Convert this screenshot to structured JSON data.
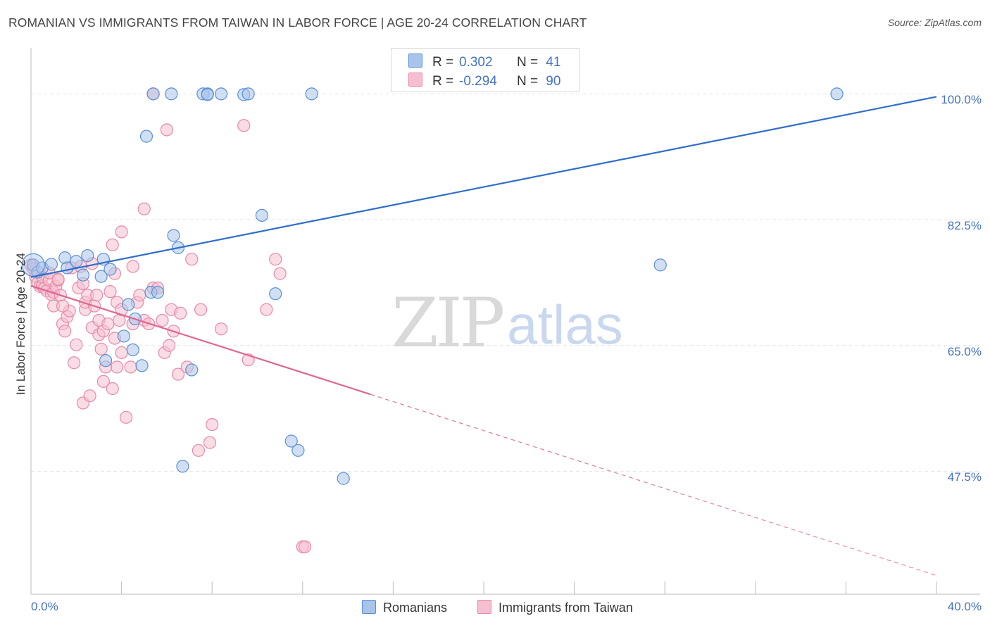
{
  "header": {
    "title": "ROMANIAN VS IMMIGRANTS FROM TAIWAN IN LABOR FORCE | AGE 20-24 CORRELATION CHART",
    "source": "Source: ZipAtlas.com"
  },
  "watermark": {
    "zip": "ZIP",
    "atlas": "atlas"
  },
  "legend": {
    "rows": [
      {
        "r_label": "R =",
        "r_value": "0.302",
        "n_label": "N =",
        "n_value": "41"
      },
      {
        "r_label": "R =",
        "r_value": "-0.294",
        "n_label": "N =",
        "n_value": "90"
      }
    ],
    "bottom": [
      "Romanians",
      "Immigrants from Taiwan"
    ]
  },
  "colors": {
    "romanians_fill": "#a9c4ea",
    "romanians_stroke": "#5b8fd6",
    "romanians_line": "#2f6ec9",
    "taiwan_fill": "#f6bfd0",
    "taiwan_stroke": "#e889a8",
    "taiwan_line": "#e0668f",
    "grid": "#e4e4e4",
    "axis_text": "#4472c4"
  },
  "chart_data": {
    "type": "scatter",
    "title": "ROMANIAN VS IMMIGRANTS FROM TAIWAN IN LABOR FORCE | AGE 20-24 CORRELATION CHART",
    "xlabel": "",
    "ylabel": "In Labor Force | Age 20-24",
    "xlim": [
      0,
      40
    ],
    "ylim": [
      30.4,
      106.4
    ],
    "x_tick_labels": [
      "0.0%",
      "40.0%"
    ],
    "y_ticks": [
      47.5,
      65.0,
      82.5,
      100.0
    ],
    "y_tick_labels": [
      "47.5%",
      "65.0%",
      "82.5%",
      "100.0%"
    ],
    "series": [
      {
        "name": "Romanians",
        "x": [
          0.1,
          0.3,
          0.5,
          0.9,
          1.5,
          1.6,
          2.0,
          2.3,
          2.5,
          3.1,
          3.2,
          3.3,
          3.5,
          4.1,
          4.3,
          4.5,
          4.6,
          4.9,
          5.1,
          5.3,
          5.4,
          5.6,
          6.2,
          6.3,
          6.5,
          6.7,
          7.1,
          7.6,
          7.8,
          7.8,
          8.4,
          9.4,
          9.6,
          10.2,
          10.8,
          11.5,
          11.8,
          12.4,
          13.8,
          27.8,
          35.6
        ],
        "y": [
          76.2,
          75.2,
          75.8,
          76.3,
          77.2,
          75.8,
          76.7,
          74.8,
          77.5,
          74.6,
          77.0,
          62.9,
          75.6,
          66.3,
          70.7,
          64.4,
          68.7,
          62.2,
          94.1,
          72.4,
          100.0,
          72.4,
          100.0,
          80.3,
          78.6,
          48.2,
          61.6,
          100.0,
          100.0,
          99.9,
          100.0,
          99.9,
          100.0,
          83.1,
          72.2,
          51.7,
          50.4,
          100.0,
          46.5,
          76.2,
          100.0
        ]
      },
      {
        "name": "Immigrants from Taiwan",
        "x": [
          0.0,
          0.1,
          0.2,
          0.3,
          0.4,
          0.5,
          0.5,
          0.6,
          0.7,
          0.8,
          0.8,
          0.9,
          1.0,
          1.0,
          1.1,
          1.2,
          1.3,
          1.4,
          1.5,
          1.6,
          1.7,
          1.8,
          1.9,
          2.0,
          2.1,
          2.2,
          2.3,
          2.4,
          2.4,
          2.5,
          2.6,
          2.7,
          2.8,
          2.9,
          3.0,
          3.0,
          3.1,
          3.2,
          3.2,
          3.3,
          3.4,
          3.5,
          3.6,
          3.6,
          3.7,
          3.7,
          3.8,
          3.8,
          3.9,
          4.0,
          4.0,
          4.2,
          4.4,
          4.5,
          4.5,
          4.7,
          4.8,
          5.0,
          5.0,
          5.2,
          5.4,
          5.6,
          5.8,
          5.9,
          6.0,
          6.1,
          6.2,
          6.3,
          6.5,
          6.6,
          6.9,
          7.1,
          7.4,
          7.5,
          7.9,
          8.0,
          8.4,
          9.4,
          9.6,
          10.4,
          10.8,
          11.0,
          12.0,
          12.1,
          1.2,
          1.4,
          2.3,
          2.7,
          4.0,
          5.4
        ],
        "y": [
          76.2,
          75.7,
          74.6,
          73.7,
          73.2,
          73.3,
          74.5,
          73.0,
          72.6,
          74.1,
          75.1,
          72.1,
          72.4,
          70.5,
          73.2,
          74.1,
          72.0,
          68.0,
          67.0,
          69.0,
          69.8,
          75.8,
          62.6,
          65.1,
          73.0,
          76.0,
          57.0,
          70.0,
          71.0,
          72.0,
          58.0,
          67.5,
          70.5,
          72.0,
          68.5,
          66.5,
          64.5,
          60.0,
          67.0,
          62.0,
          68.0,
          72.5,
          59.0,
          79.0,
          66.0,
          75.0,
          62.0,
          71.0,
          68.5,
          70.0,
          64.0,
          55.0,
          62.0,
          76.0,
          68.0,
          71.0,
          72.0,
          68.5,
          84.0,
          68.0,
          73.0,
          73.0,
          68.5,
          64.0,
          95.0,
          65.0,
          70.0,
          67.0,
          61.0,
          69.5,
          62.0,
          77.0,
          50.4,
          70.0,
          51.5,
          54.0,
          67.3,
          95.6,
          63.0,
          70.0,
          77.0,
          75.0,
          37.0,
          37.0,
          74.2,
          70.5,
          73.6,
          76.4,
          80.8,
          100.0
        ]
      }
    ],
    "trend_lines": [
      {
        "name": "Romanians",
        "x": [
          0.0,
          40.0
        ],
        "y": [
          74.5,
          99.6
        ]
      },
      {
        "name": "Immigrants from Taiwan",
        "solid_x": [
          0.0,
          15.0
        ],
        "solid_y": [
          73.3,
          58.2
        ],
        "dashed_x": [
          15.0,
          40.0
        ],
        "dashed_y": [
          58.2,
          33.0
        ]
      }
    ],
    "legend_position": "top-center"
  }
}
